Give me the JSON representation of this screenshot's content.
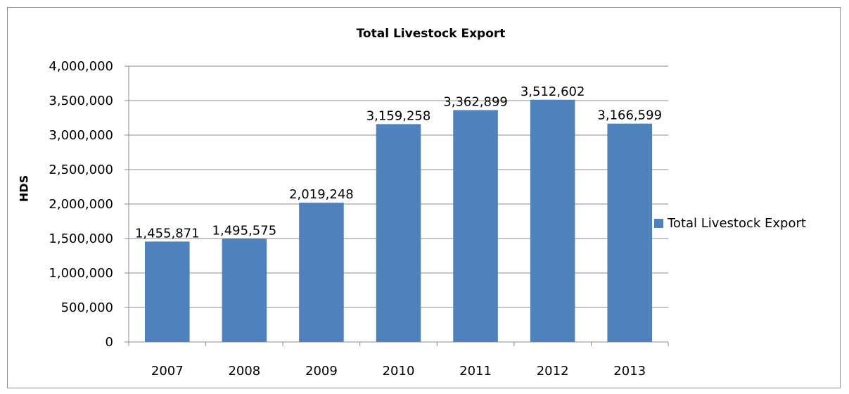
{
  "chart_data": {
    "type": "bar",
    "title": "Total Livestock Export",
    "xlabel": "",
    "ylabel": "HDS",
    "categories": [
      "2007",
      "2008",
      "2009",
      "2010",
      "2011",
      "2012",
      "2013"
    ],
    "series": [
      {
        "name": "Total Livestock Export",
        "values": [
          1455871,
          1495575,
          2019248,
          3159258,
          3362899,
          3512602,
          3166599
        ],
        "labels": [
          "1,455,871",
          "1,495,575",
          "2,019,248",
          "3,159,258",
          "3,362,899",
          "3,512,602",
          "3,166,599"
        ],
        "color": "#4f81bd"
      }
    ],
    "ylim": [
      0,
      4000000
    ],
    "yticks": [
      0,
      500000,
      1000000,
      1500000,
      2000000,
      2500000,
      3000000,
      3500000,
      4000000
    ],
    "ytick_labels": [
      "0",
      "500,000",
      "1,000,000",
      "1,500,000",
      "2,000,000",
      "2,500,000",
      "3,000,000",
      "3,500,000",
      "4,000,000"
    ],
    "grid": true,
    "legend": "right"
  }
}
